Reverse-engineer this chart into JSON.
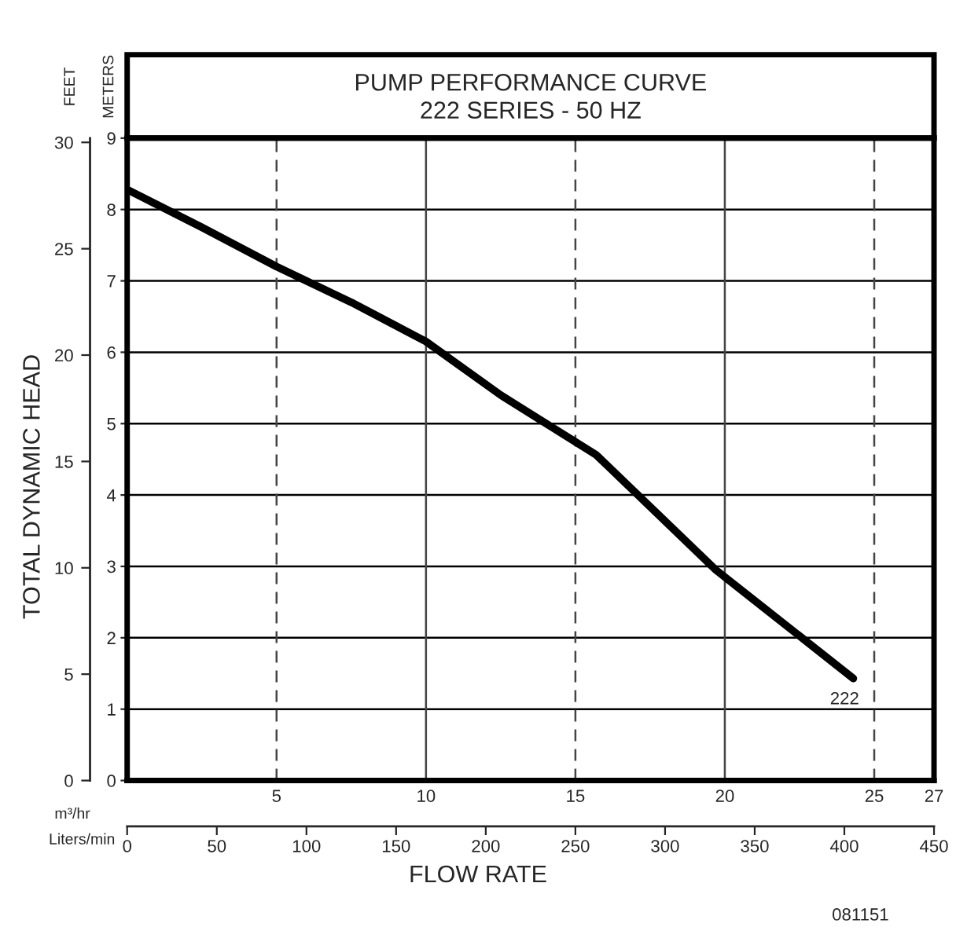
{
  "chart_data": {
    "type": "line",
    "title": "PUMP PERFORMANCE CURVE",
    "subtitle": "222 SERIES - 50 HZ",
    "xlabel": "m³/hr",
    "x2label": "Liters/min",
    "ylabel": "METERS",
    "y2label": "FEET",
    "annotations": [
      "TOTAL DYNAMIC HEAD",
      "FLOW RATE",
      "081151"
    ],
    "x": [
      0,
      2.5,
      5,
      7.5,
      10,
      12.5,
      15.7,
      19.7,
      24.3
    ],
    "series": [
      {
        "name": "222",
        "color": "#000000",
        "values": [
          8.28,
          7.75,
          7.2,
          6.7,
          6.15,
          5.4,
          4.56,
          2.95,
          1.43
        ]
      }
    ],
    "xlim": [
      0,
      27
    ],
    "xticks": [
      5,
      10,
      15,
      20,
      25,
      27
    ],
    "x2lim": [
      0,
      450
    ],
    "x2ticks": [
      0,
      50,
      100,
      150,
      200,
      250,
      300,
      350,
      400,
      450
    ],
    "ylim": [
      0,
      9
    ],
    "yticks": [
      0,
      1,
      2,
      3,
      4,
      5,
      6,
      7,
      8,
      9
    ],
    "y2lim": [
      0,
      30.2
    ],
    "y2ticks": [
      0,
      5,
      10,
      15,
      20,
      25,
      30
    ],
    "grid": "y",
    "ref_lines": [
      {
        "axis": "x",
        "value": 5,
        "line_style": "dashed"
      },
      {
        "axis": "x",
        "value": 10,
        "line_style": "solid"
      },
      {
        "axis": "x",
        "value": 15,
        "line_style": "dashed"
      },
      {
        "axis": "x",
        "value": 20,
        "line_style": "solid"
      },
      {
        "axis": "x",
        "value": 25,
        "line_style": "dashed"
      }
    ],
    "marker": "none",
    "line_style": "solid"
  }
}
